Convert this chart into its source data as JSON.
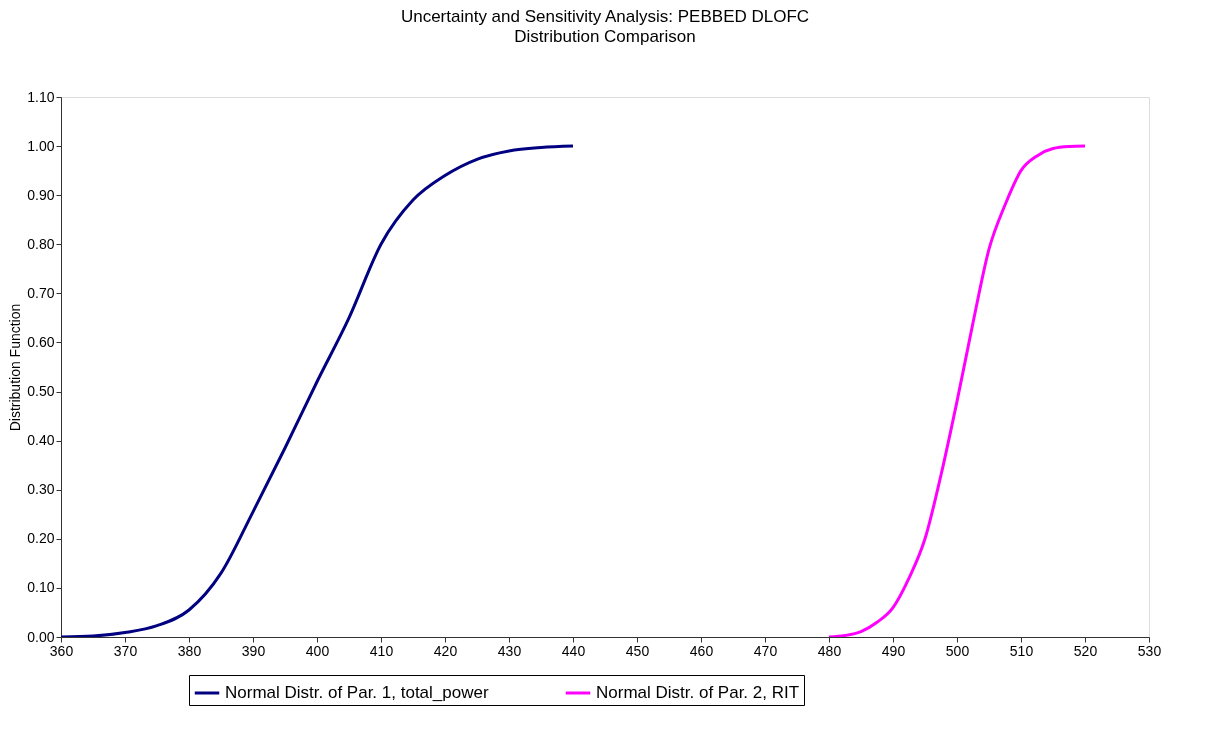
{
  "chart_data": {
    "type": "line",
    "title": "Uncertainty and Sensitivity Analysis: PEBBED DLOFC",
    "subtitle": "Distribution Comparison",
    "ylabel": "Distribution Function",
    "xlim": [
      360,
      530
    ],
    "xticks": [
      360,
      370,
      380,
      390,
      400,
      410,
      420,
      430,
      440,
      450,
      460,
      470,
      480,
      490,
      500,
      510,
      520,
      530
    ],
    "ylim": [
      0,
      1.1
    ],
    "yticks": [
      {
        "value": 0,
        "label": "0.00"
      },
      {
        "value": 0.1,
        "label": "0.10"
      },
      {
        "value": 0.2,
        "label": "0.20"
      },
      {
        "value": 0.3,
        "label": "0.30"
      },
      {
        "value": 0.4,
        "label": "0.40"
      },
      {
        "value": 0.5,
        "label": "0.50"
      },
      {
        "value": 0.6,
        "label": "0.60"
      },
      {
        "value": 0.7,
        "label": "0.70"
      },
      {
        "value": 0.8,
        "label": "0.80"
      },
      {
        "value": 0.9,
        "label": "0.90"
      },
      {
        "value": 1.0,
        "label": "1.00"
      },
      {
        "value": 1.1,
        "label": "1.10"
      }
    ],
    "grid": false,
    "legend": "bottom",
    "marker": "none",
    "line_style": "solid",
    "series": [
      {
        "name": "Normal Distr. of Par. 1, total_power",
        "color": "#000080",
        "x": [
          360,
          365,
          370,
          375,
          380,
          385,
          390,
          395,
          400,
          405,
          410,
          415,
          420,
          425,
          430,
          435,
          440
        ],
        "values": [
          0,
          0.002,
          0.009,
          0.023,
          0.055,
          0.13,
          0.255,
          0.385,
          0.52,
          0.65,
          0.8,
          0.89,
          0.94,
          0.973,
          0.99,
          0.997,
          1.0
        ]
      },
      {
        "name": "Normal Distr. of Par. 2, RIT",
        "color": "#ff00ff",
        "x": [
          480,
          482.5,
          485,
          487.5,
          490,
          492.5,
          495,
          497.5,
          500,
          502.5,
          505,
          507.5,
          510,
          512.5,
          515,
          517.5,
          520
        ],
        "values": [
          0,
          0.003,
          0.011,
          0.03,
          0.06,
          0.12,
          0.2,
          0.33,
          0.48,
          0.64,
          0.79,
          0.88,
          0.95,
          0.98,
          0.995,
          0.999,
          1.0
        ]
      }
    ]
  }
}
